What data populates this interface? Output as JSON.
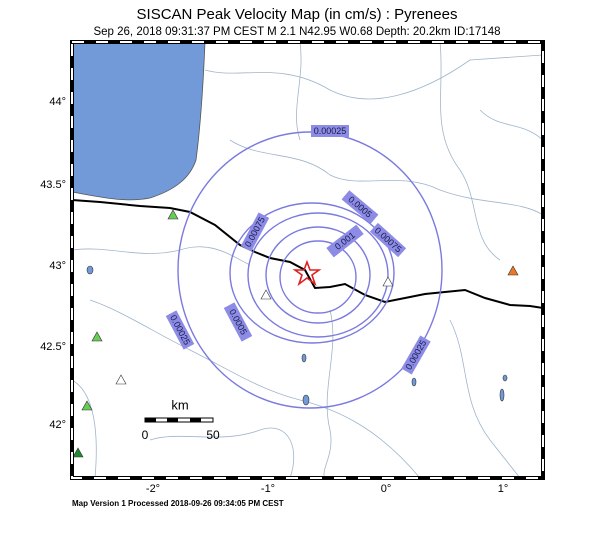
{
  "header": {
    "title": "SISCAN Peak Velocity Map (in cm/s) : Pyrenees",
    "subtitle": "Sep 26, 2018 09:31:37 PM CEST   M 2.1   N42.95 W0.68   Depth: 20.2km   ID:17148"
  },
  "map": {
    "y_labels": [
      "44°",
      "43.5°",
      "43°",
      "42.5°",
      "42°"
    ],
    "x_labels": [
      "-2°",
      "-1°",
      "0°",
      "1°"
    ],
    "contour_labels": [
      "0.00025",
      "0.0005",
      "0.00075",
      "0.00075",
      "0.001",
      "0.0005",
      "0.00025",
      "0.00025"
    ],
    "scale": {
      "unit": "km",
      "labels": [
        "0",
        "50"
      ]
    }
  },
  "footer": "Map Version 1 Processed 2018-09-26 09:34:05 PM CEST"
}
